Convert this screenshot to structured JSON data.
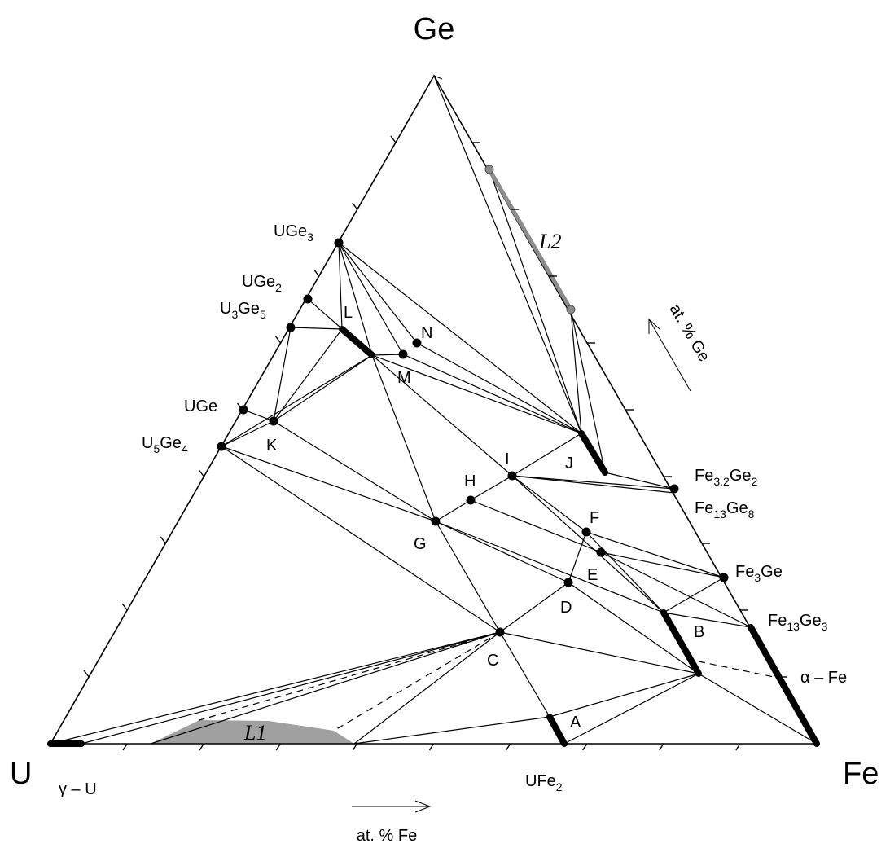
{
  "vertices": {
    "top": "Ge",
    "left": "U",
    "right": "Fe"
  },
  "axis_labels": {
    "ge": "at. % Ge",
    "fe": "at. % Fe"
  },
  "phases": [
    {
      "parts": [
        "UGe",
        "3"
      ]
    },
    {
      "parts": [
        "UGe",
        "2"
      ]
    },
    {
      "parts": [
        "U",
        "3",
        "Ge",
        "5"
      ]
    },
    {
      "parts": [
        "UGe"
      ]
    },
    {
      "parts": [
        "U",
        "5",
        "Ge",
        "4"
      ]
    },
    {
      "parts": [
        "Fe",
        "3.2",
        "Ge",
        "2"
      ]
    },
    {
      "parts": [
        "Fe",
        "13",
        "Ge",
        "8"
      ]
    },
    {
      "parts": [
        "Fe",
        "3",
        "Ge"
      ]
    },
    {
      "parts": [
        "Fe",
        "13",
        "Ge",
        "3"
      ]
    },
    {
      "parts": [
        "UFe",
        "2"
      ]
    }
  ],
  "solutions": [
    "γ – U",
    "α – Fe"
  ],
  "liquids": [
    "L1",
    "L2"
  ],
  "regions": [
    "A",
    "B",
    "C",
    "D",
    "E",
    "F",
    "G",
    "H",
    "I",
    "J",
    "K",
    "L",
    "M",
    "N"
  ]
}
